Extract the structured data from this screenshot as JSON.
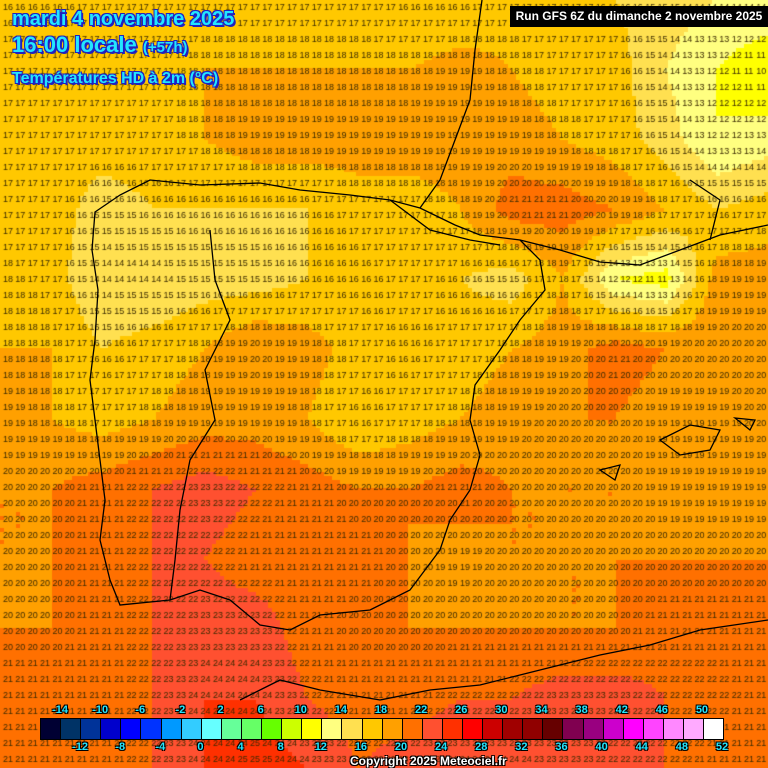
{
  "header": {
    "date": "mardi 4 novembre 2025",
    "time": "16:00 locale",
    "lead": "(+57h)",
    "variable": "Températures HD à 2m (°C)",
    "run": "Run GFS 6Z du dimanche 2 novembre 2025"
  },
  "legend": {
    "top_labels": [
      "-14",
      "-10",
      "-6",
      "-2",
      "2",
      "6",
      "10",
      "14",
      "18",
      "22",
      "26",
      "30",
      "34",
      "38",
      "42",
      "46",
      "50"
    ],
    "bottom_labels": [
      "-12",
      "-8",
      "-4",
      "0",
      "4",
      "8",
      "12",
      "16",
      "20",
      "24",
      "28",
      "32",
      "36",
      "40",
      "44",
      "48",
      "52"
    ],
    "thresholds": [
      -14,
      -12,
      -10,
      -8,
      -6,
      -4,
      -2,
      0,
      2,
      4,
      6,
      8,
      10,
      12,
      14,
      16,
      18,
      20,
      22,
      24,
      26,
      28,
      30,
      32,
      34,
      36,
      38,
      40,
      42,
      44,
      46,
      48,
      50,
      52
    ],
    "colors": [
      "#000033",
      "#003366",
      "#003399",
      "#0000CC",
      "#0000FF",
      "#0033FF",
      "#0099FF",
      "#33CCFF",
      "#66FFFF",
      "#66FF99",
      "#66FF66",
      "#66FF00",
      "#CCFF00",
      "#FFFF00",
      "#FFFF80",
      "#FFE050",
      "#FFC800",
      "#FFA000",
      "#FF7000",
      "#FF5030",
      "#FF3000",
      "#FF0000",
      "#CC0000",
      "#A00000",
      "#900000",
      "#660000",
      "#800050",
      "#990080",
      "#CC00CC",
      "#FF00FF",
      "#FF44FF",
      "#FF88FF",
      "#FFAAFF",
      "#FFFFFF"
    ]
  },
  "temperature_field_celsius": [
    [
      16,
      16,
      17,
      17,
      17,
      17,
      17,
      17,
      16,
      16,
      17,
      17,
      16,
      15,
      14,
      14
    ],
    [
      17,
      17,
      17,
      17,
      18,
      18,
      18,
      18,
      18,
      19,
      18,
      17,
      17,
      14,
      12,
      10
    ],
    [
      17,
      17,
      17,
      17,
      18,
      19,
      19,
      19,
      19,
      19,
      19,
      18,
      17,
      15,
      12,
      13
    ],
    [
      17,
      17,
      15,
      16,
      16,
      16,
      16,
      17,
      17,
      18,
      21,
      21,
      20,
      18,
      16,
      17
    ],
    [
      18,
      17,
      14,
      14,
      15,
      15,
      16,
      16,
      17,
      16,
      15,
      18,
      12,
      11,
      19,
      19
    ],
    [
      18,
      18,
      16,
      17,
      18,
      20,
      19,
      17,
      16,
      17,
      18,
      19,
      21,
      20,
      20,
      20
    ],
    [
      19,
      18,
      17,
      18,
      19,
      19,
      18,
      16,
      17,
      18,
      19,
      20,
      20,
      19,
      19,
      20
    ],
    [
      20,
      20,
      21,
      22,
      23,
      22,
      21,
      20,
      20,
      21,
      20,
      20,
      20,
      19,
      19,
      19
    ],
    [
      20,
      20,
      21,
      22,
      22,
      21,
      21,
      21,
      20,
      19,
      20,
      20,
      20,
      20,
      20,
      20
    ],
    [
      20,
      20,
      21,
      22,
      23,
      23,
      21,
      20,
      20,
      20,
      20,
      20,
      20,
      21,
      21,
      21
    ],
    [
      21,
      21,
      21,
      22,
      24,
      24,
      22,
      21,
      21,
      22,
      22,
      23,
      23,
      22,
      22,
      21
    ],
    [
      21,
      21,
      21,
      22,
      24,
      25,
      24,
      22,
      23,
      24,
      24,
      23,
      22,
      22,
      21,
      21
    ]
  ],
  "copyright": "Copyright 2025 Meteociel.fr"
}
